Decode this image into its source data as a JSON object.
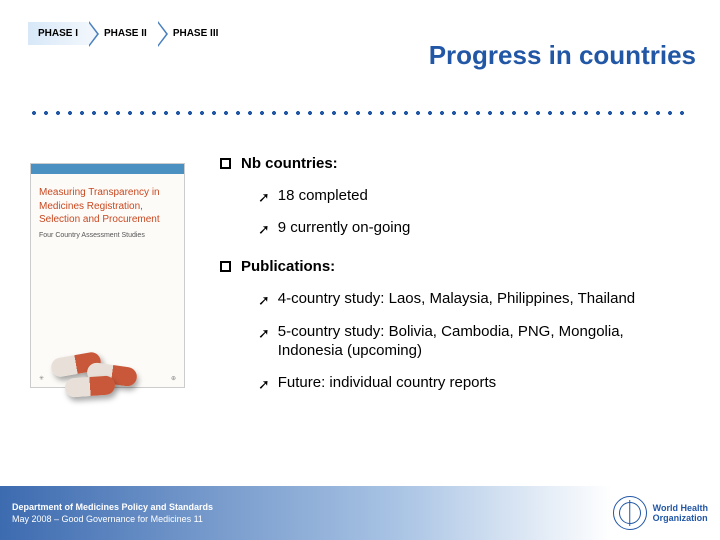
{
  "phases": {
    "tab1": "PHASE I",
    "tab2": "PHASE II",
    "tab3": "PHASE III"
  },
  "title": "Progress in countries",
  "book": {
    "title": "Measuring Transparency in Medicines Registration, Selection and Procurement",
    "subtitle": "Four Country Assessment Studies"
  },
  "sections": {
    "s1": {
      "heading": "Nb countries:",
      "items": {
        "i1": "18 completed",
        "i2": "9 currently on-going"
      }
    },
    "s2": {
      "heading": "Publications:",
      "items": {
        "i1": "4-country study: Laos, Malaysia, Philippines, Thailand",
        "i2": "5-country study: Bolivia, Cambodia, PNG, Mongolia, Indonesia (upcoming)",
        "i3": "Future: individual country reports"
      }
    }
  },
  "footer": {
    "line1": "Department of Medicines Policy and Standards",
    "line2": "May 2008 – Good Governance for Medicines 11"
  },
  "who": {
    "line1": "World Health",
    "line2": "Organization"
  },
  "colors": {
    "title": "#2257a6",
    "accent": "#2257a6",
    "footer_grad_start": "#3d6bb0",
    "book_title": "#c94820"
  }
}
